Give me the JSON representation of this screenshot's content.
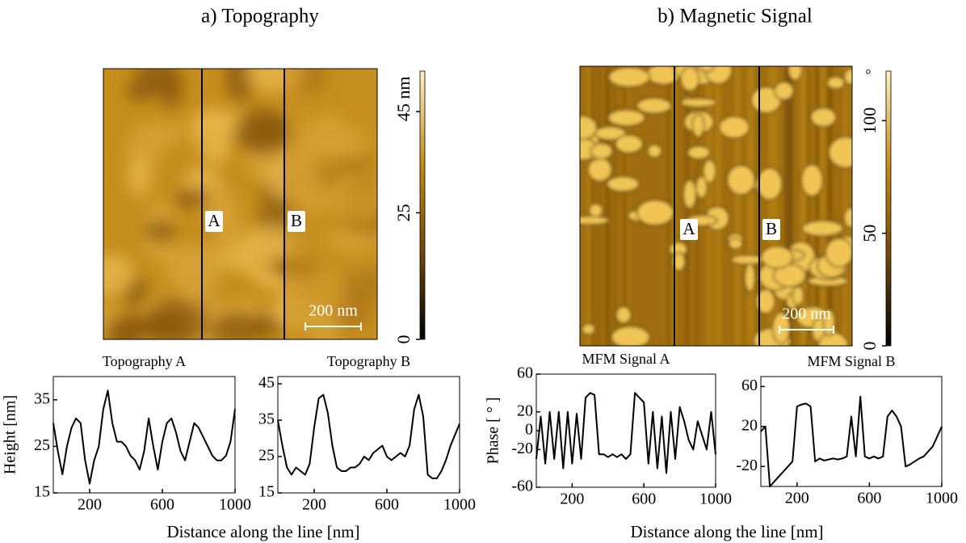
{
  "panels": [
    {
      "title": "a) Topography",
      "line_labels": [
        "A",
        "B"
      ],
      "scale_bar": "200 nm",
      "colorbar": {
        "ylim": [
          0,
          53
        ],
        "yticks": [
          0,
          25,
          {
            "value": 45,
            "label": "45 nm"
          }
        ]
      },
      "x_label": "Distance along the line [nm]"
    },
    {
      "title": "b) Magnetic Signal",
      "line_labels": [
        "A",
        "B"
      ],
      "scale_bar": "200 nm",
      "colorbar": {
        "ylim": [
          0,
          122
        ],
        "yticks": [
          0,
          50,
          100
        ],
        "unit": "°"
      },
      "x_label": "Distance along the line [nm]"
    }
  ],
  "chart_data": [
    {
      "type": "line",
      "title": "Topography A",
      "y_label": "Height [nm]",
      "color": "#000000",
      "xlim": [
        0,
        1000
      ],
      "ylim": [
        15,
        40
      ],
      "xticks": [
        200,
        600,
        1000
      ],
      "yticks": [
        15,
        25,
        35
      ],
      "x": [
        0,
        25,
        50,
        75,
        100,
        125,
        150,
        175,
        200,
        225,
        250,
        275,
        300,
        325,
        350,
        375,
        400,
        425,
        450,
        475,
        500,
        525,
        550,
        575,
        600,
        625,
        650,
        675,
        700,
        725,
        750,
        775,
        800,
        825,
        850,
        875,
        900,
        925,
        950,
        975,
        1000
      ],
      "values": [
        30,
        24,
        19,
        25,
        29,
        31,
        30,
        22,
        17,
        22,
        25,
        33,
        37,
        30,
        26,
        26,
        25,
        23,
        22,
        20,
        24,
        31,
        25,
        20,
        26,
        30,
        31,
        28,
        24,
        22,
        26,
        30,
        29,
        27,
        25,
        23,
        22,
        22,
        23,
        26,
        33
      ]
    },
    {
      "type": "line",
      "title": "Topography B",
      "color": "#000000",
      "xlim": [
        0,
        1000
      ],
      "ylim": [
        15,
        47
      ],
      "xticks": [
        200,
        600,
        1000
      ],
      "yticks": [
        15,
        25,
        35,
        45
      ],
      "x": [
        0,
        25,
        50,
        75,
        100,
        125,
        150,
        175,
        200,
        225,
        250,
        275,
        300,
        325,
        350,
        375,
        400,
        425,
        450,
        475,
        500,
        525,
        550,
        575,
        600,
        625,
        650,
        675,
        700,
        725,
        750,
        775,
        800,
        825,
        850,
        875,
        900,
        925,
        950,
        975,
        1000
      ],
      "values": [
        35,
        28,
        22,
        20,
        22,
        21,
        20,
        23,
        33,
        41,
        42,
        37,
        28,
        22,
        21,
        21,
        22,
        22,
        23,
        25,
        24,
        26,
        27,
        28,
        25,
        24,
        25,
        26,
        25,
        28,
        38,
        42,
        36,
        20,
        19,
        19,
        21,
        24,
        28,
        31,
        34
      ]
    },
    {
      "type": "line",
      "title": "MFM Signal A",
      "y_label": "Phase [ ° ]",
      "color": "#000000",
      "xlim": [
        0,
        1000
      ],
      "ylim": [
        -60,
        60
      ],
      "xticks": [
        200,
        600,
        1000
      ],
      "yticks": [
        -60,
        -20,
        0,
        20,
        60
      ],
      "x": [
        0,
        25,
        50,
        75,
        100,
        125,
        150,
        175,
        200,
        225,
        250,
        275,
        300,
        325,
        350,
        375,
        400,
        425,
        450,
        475,
        500,
        525,
        550,
        575,
        600,
        625,
        650,
        675,
        700,
        725,
        750,
        775,
        800,
        825,
        850,
        875,
        900,
        925,
        950,
        975,
        1000
      ],
      "values": [
        -30,
        15,
        -35,
        20,
        -30,
        20,
        -40,
        20,
        -35,
        18,
        -30,
        35,
        40,
        38,
        -25,
        -25,
        -28,
        -25,
        -28,
        -25,
        -30,
        -25,
        40,
        35,
        30,
        -35,
        20,
        -40,
        15,
        -45,
        20,
        -30,
        25,
        10,
        -10,
        -20,
        10,
        -5,
        -20,
        20,
        -25
      ]
    },
    {
      "type": "line",
      "title": "MFM Signal B",
      "color": "#000000",
      "xlim": [
        0,
        1000
      ],
      "ylim": [
        -40,
        70
      ],
      "xticks": [
        200,
        600,
        1000
      ],
      "yticks": [
        -20,
        20,
        60
      ],
      "x": [
        0,
        25,
        50,
        75,
        100,
        125,
        150,
        175,
        200,
        225,
        250,
        275,
        300,
        325,
        350,
        375,
        400,
        425,
        450,
        475,
        500,
        525,
        550,
        575,
        600,
        625,
        650,
        675,
        700,
        725,
        750,
        775,
        800,
        825,
        850,
        875,
        900,
        925,
        950,
        975,
        1000
      ],
      "values": [
        15,
        20,
        -40,
        -35,
        -30,
        -25,
        -20,
        -15,
        40,
        42,
        43,
        40,
        -15,
        -12,
        -14,
        -13,
        -12,
        -13,
        -12,
        -10,
        30,
        -10,
        50,
        -10,
        -12,
        -10,
        -12,
        -10,
        30,
        36,
        30,
        20,
        -20,
        -18,
        -15,
        -12,
        -10,
        -5,
        0,
        10,
        20
      ]
    }
  ]
}
